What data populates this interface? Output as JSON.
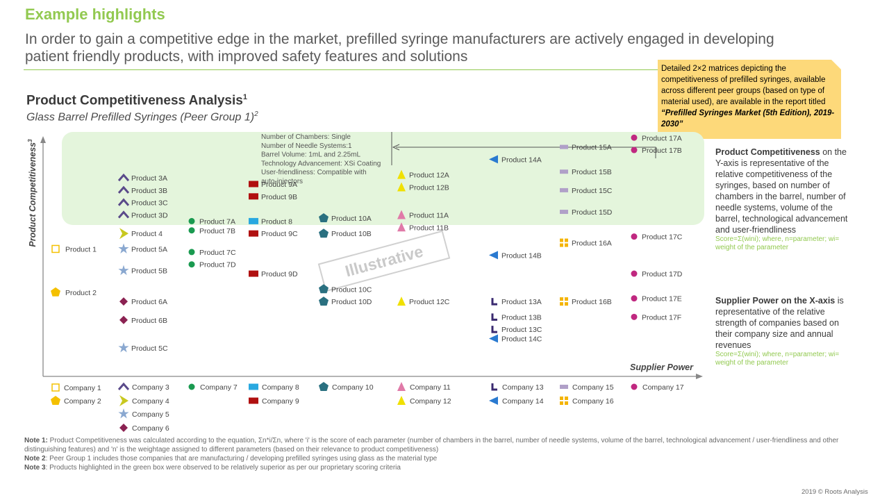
{
  "header": {
    "title": "Example highlights",
    "subtitle": "In order to gain a competitive edge in the market, prefilled syringe manufacturers are actively engaged in developing patient friendly products, with improved safety features and solutions"
  },
  "callout": {
    "text": "Detailed 2×2 matrices depicting the competitiveness of prefilled syringes, available across different peer groups (based on type of material used), are available in the report titled ",
    "report_title": "“Prefilled Syringes Market (5th Edition), 2019-2030”"
  },
  "chart_titles": {
    "title": "Product Competitiveness Analysis",
    "title_sup": "1",
    "subtitle": "Glass Barrel Prefilled Syringes (Peer Group 1)",
    "subtitle_sup": "2"
  },
  "side_notes": {
    "y_head": "Product Competitiveness",
    "y_text": " on the Y-axis is representative of the relative competitiveness of the syringes, based on number of chambers in the barrel, number of needle systems, volume of the barrel, technological advancement and user-friendliness",
    "y_formula": "Score=Σ(wini); where, n=parameter; wi= weight of the parameter",
    "x_head": "Supplier Power on the X-axis",
    "x_text": " is representative of the relative strength of companies based on their company size and annual revenues",
    "x_formula": "Score=Σ(wini); where, n=parameter; wi= weight of the parameter"
  },
  "notes": {
    "note1_label": "Note 1:",
    "note1": " Product Competitiveness was calculated according to the equation, Σn*i/Σn, where 'i' is the score of each parameter (number of chambers in the barrel, number of needle systems, volume of the barrel, technological advancement / user-friendliness and other distinguishing features) and 'n' is the weightage assigned to different parameters (based on their relevance to product competitiveness)",
    "note2_label": "Note 2",
    "note2": ": Peer Group 1 includes those companies that are manufacturing / developing prefilled syringes using glass as the material type",
    "note3_label": "Note 3",
    "note3": ": Products highlighted in the green box were observed to be relatively superior as per our proprietary scoring criteria"
  },
  "footer": "2019 © Roots Analysis",
  "chart_data": {
    "type": "scatter",
    "xlabel": "Supplier Power",
    "ylabel": "Product Competitiveness",
    "ylabel_sup": "3",
    "watermark": "Illustrative",
    "colors": {
      "highlight_box": "#e4f5dc",
      "axis": "#888888"
    },
    "annotation": {
      "lines": [
        "Number of Chambers: Single",
        "Number of Needle Systems:1",
        "Barrel Volume: 1mL and 2.25mL",
        "Technology Advancement: XSi Coating",
        "User-friendliness: Compatible with",
        "auto-injectors"
      ]
    },
    "companies": [
      {
        "name": "Company 1",
        "marker": "square-open",
        "color": "#f4c000"
      },
      {
        "name": "Company 2",
        "marker": "pentagon",
        "color": "#f4c000"
      },
      {
        "name": "Company 3",
        "marker": "chevron",
        "color": "#5a4a8a"
      },
      {
        "name": "Company 4",
        "marker": "arrow-right",
        "color": "#c8c820"
      },
      {
        "name": "Company 5",
        "marker": "star",
        "color": "#8aa8d0"
      },
      {
        "name": "Company 6",
        "marker": "diamond",
        "color": "#8b2252"
      },
      {
        "name": "Company 7",
        "marker": "circle",
        "color": "#1a9a50"
      },
      {
        "name": "Company 8",
        "marker": "rect",
        "color": "#29a8e0"
      },
      {
        "name": "Company 9",
        "marker": "rect",
        "color": "#b01010"
      },
      {
        "name": "Company 10",
        "marker": "pentagon",
        "color": "#2a7080"
      },
      {
        "name": "Company 11",
        "marker": "triangle",
        "color": "#e07aa8"
      },
      {
        "name": "Company 12",
        "marker": "triangle",
        "color": "#f0e000"
      },
      {
        "name": "Company 13",
        "marker": "ell",
        "color": "#3a2a70"
      },
      {
        "name": "Company 14",
        "marker": "triangle-left",
        "color": "#2a7ad0"
      },
      {
        "name": "Company 15",
        "marker": "bar",
        "color": "#b0a0c8"
      },
      {
        "name": "Company 16",
        "marker": "plus-box",
        "color": "#f4b400"
      },
      {
        "name": "Company 17",
        "marker": "circle",
        "color": "#c02880"
      }
    ],
    "products": [
      {
        "label": "Product 1",
        "company": "Company 1",
        "x": 1,
        "y": 3.9
      },
      {
        "label": "Product 2",
        "company": "Company 2",
        "x": 1,
        "y": 2.5
      },
      {
        "label": "Product 3A",
        "company": "Company 3",
        "x": 2,
        "y": 6.2
      },
      {
        "label": "Product 3B",
        "company": "Company 3",
        "x": 2,
        "y": 5.8
      },
      {
        "label": "Product 3C",
        "company": "Company 3",
        "x": 2,
        "y": 5.4
      },
      {
        "label": "Product 3D",
        "company": "Company 3",
        "x": 2,
        "y": 5.0
      },
      {
        "label": "Product 4",
        "company": "Company 4",
        "x": 2,
        "y": 4.4
      },
      {
        "label": "Product 5A",
        "company": "Company 5",
        "x": 2,
        "y": 3.9
      },
      {
        "label": "Product 5B",
        "company": "Company 5",
        "x": 2,
        "y": 3.2
      },
      {
        "label": "Product 5C",
        "company": "Company 5",
        "x": 2,
        "y": 0.7
      },
      {
        "label": "Product 6A",
        "company": "Company 6",
        "x": 2,
        "y": 2.2
      },
      {
        "label": "Product 6B",
        "company": "Company 6",
        "x": 2,
        "y": 1.6
      },
      {
        "label": "Product 7A",
        "company": "Company 7",
        "x": 3,
        "y": 4.8
      },
      {
        "label": "Product 7B",
        "company": "Company 7",
        "x": 3,
        "y": 4.5
      },
      {
        "label": "Product 7C",
        "company": "Company 7",
        "x": 3,
        "y": 3.8
      },
      {
        "label": "Product 7D",
        "company": "Company 7",
        "x": 3,
        "y": 3.4
      },
      {
        "label": "Product 8",
        "company": "Company 8",
        "x": 4,
        "y": 4.8
      },
      {
        "label": "Product 9A",
        "company": "Company 9",
        "x": 4,
        "y": 6.0
      },
      {
        "label": "Product 9B",
        "company": "Company 9",
        "x": 4,
        "y": 5.6
      },
      {
        "label": "Product 9C",
        "company": "Company 9",
        "x": 4,
        "y": 4.4
      },
      {
        "label": "Product 9D",
        "company": "Company 9",
        "x": 4,
        "y": 3.1
      },
      {
        "label": "Product 10A",
        "company": "Company 10",
        "x": 5,
        "y": 4.9
      },
      {
        "label": "Product 10B",
        "company": "Company 10",
        "x": 5,
        "y": 4.4
      },
      {
        "label": "Product 10C",
        "company": "Company 10",
        "x": 5,
        "y": 2.6
      },
      {
        "label": "Product 10D",
        "company": "Company 10",
        "x": 5,
        "y": 2.2
      },
      {
        "label": "Product 11A",
        "company": "Company 11",
        "x": 6,
        "y": 5.0
      },
      {
        "label": "Product 11B",
        "company": "Company 11",
        "x": 6,
        "y": 4.6
      },
      {
        "label": "Product 12A",
        "company": "Company 12",
        "x": 6,
        "y": 6.3
      },
      {
        "label": "Product 12B",
        "company": "Company 12",
        "x": 6,
        "y": 5.9
      },
      {
        "label": "Product 12C",
        "company": "Company 12",
        "x": 6,
        "y": 2.2
      },
      {
        "label": "Product 13A",
        "company": "Company 13",
        "x": 7,
        "y": 2.2
      },
      {
        "label": "Product 13B",
        "company": "Company 13",
        "x": 7,
        "y": 1.7
      },
      {
        "label": "Product 13C",
        "company": "Company 13",
        "x": 7,
        "y": 1.3
      },
      {
        "label": "Product 14A",
        "company": "Company 14",
        "x": 7,
        "y": 6.8
      },
      {
        "label": "Product 14B",
        "company": "Company 14",
        "x": 7,
        "y": 3.7
      },
      {
        "label": "Product 14C",
        "company": "Company 14",
        "x": 7,
        "y": 1.0
      },
      {
        "label": "Product 15A",
        "company": "Company 15",
        "x": 8,
        "y": 7.2
      },
      {
        "label": "Product 15B",
        "company": "Company 15",
        "x": 8,
        "y": 6.4
      },
      {
        "label": "Product 15C",
        "company": "Company 15",
        "x": 8,
        "y": 5.8
      },
      {
        "label": "Product 15D",
        "company": "Company 15",
        "x": 8,
        "y": 5.1
      },
      {
        "label": "Product 16A",
        "company": "Company 16",
        "x": 8,
        "y": 4.1
      },
      {
        "label": "Product 16B",
        "company": "Company 16",
        "x": 8,
        "y": 2.2
      },
      {
        "label": "Product 17A",
        "company": "Company 17",
        "x": 9,
        "y": 7.5
      },
      {
        "label": "Product 17B",
        "company": "Company 17",
        "x": 9,
        "y": 7.1
      },
      {
        "label": "Product 17C",
        "company": "Company 17",
        "x": 9,
        "y": 4.3
      },
      {
        "label": "Product 17D",
        "company": "Company 17",
        "x": 9,
        "y": 3.1
      },
      {
        "label": "Product 17E",
        "company": "Company 17",
        "x": 9,
        "y": 2.3
      },
      {
        "label": "Product 17F",
        "company": "Company 17",
        "x": 9,
        "y": 1.7
      }
    ]
  }
}
